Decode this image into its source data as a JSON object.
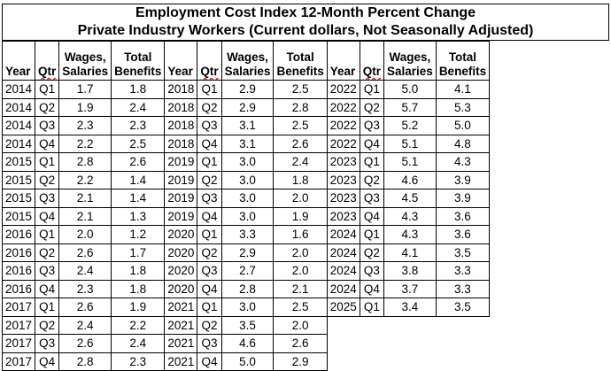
{
  "title": {
    "line1": "Employment Cost Index 12-Month Percent Change",
    "line2": "Private Industry Workers (Current dollars, Not Seasonally Adjusted)"
  },
  "headers": {
    "year": "Year",
    "qtr": "Qtr",
    "wages_l1": "Wages,",
    "wages_l2": "Salaries",
    "benefits_l1": "Total",
    "benefits_l2": "Benefits"
  },
  "groups": [
    {
      "rows": [
        {
          "year": "2014",
          "qtr": "Q1",
          "wages": "1.7",
          "benefits": "1.8"
        },
        {
          "year": "2014",
          "qtr": "Q2",
          "wages": "1.9",
          "benefits": "2.4"
        },
        {
          "year": "2014",
          "qtr": "Q3",
          "wages": "2.3",
          "benefits": "2.3"
        },
        {
          "year": "2014",
          "qtr": "Q4",
          "wages": "2.2",
          "benefits": "2.5"
        },
        {
          "year": "2015",
          "qtr": "Q1",
          "wages": "2.8",
          "benefits": "2.6"
        },
        {
          "year": "2015",
          "qtr": "Q2",
          "wages": "2.2",
          "benefits": "1.4"
        },
        {
          "year": "2015",
          "qtr": "Q3",
          "wages": "2.1",
          "benefits": "1.4"
        },
        {
          "year": "2015",
          "qtr": "Q4",
          "wages": "2.1",
          "benefits": "1.3"
        },
        {
          "year": "2016",
          "qtr": "Q1",
          "wages": "2.0",
          "benefits": "1.2"
        },
        {
          "year": "2016",
          "qtr": "Q2",
          "wages": "2.6",
          "benefits": "1.7"
        },
        {
          "year": "2016",
          "qtr": "Q3",
          "wages": "2.4",
          "benefits": "1.8"
        },
        {
          "year": "2016",
          "qtr": "Q4",
          "wages": "2.3",
          "benefits": "1.8"
        },
        {
          "year": "2017",
          "qtr": "Q1",
          "wages": "2.6",
          "benefits": "1.9"
        },
        {
          "year": "2017",
          "qtr": "Q2",
          "wages": "2.4",
          "benefits": "2.2"
        },
        {
          "year": "2017",
          "qtr": "Q3",
          "wages": "2.6",
          "benefits": "2.4"
        },
        {
          "year": "2017",
          "qtr": "Q4",
          "wages": "2.8",
          "benefits": "2.3"
        }
      ]
    },
    {
      "rows": [
        {
          "year": "2018",
          "qtr": "Q1",
          "wages": "2.9",
          "benefits": "2.5"
        },
        {
          "year": "2018",
          "qtr": "Q2",
          "wages": "2.9",
          "benefits": "2.8"
        },
        {
          "year": "2018",
          "qtr": "Q3",
          "wages": "3.1",
          "benefits": "2.5"
        },
        {
          "year": "2018",
          "qtr": "Q4",
          "wages": "3.1",
          "benefits": "2.6"
        },
        {
          "year": "2019",
          "qtr": "Q1",
          "wages": "3.0",
          "benefits": "2.4"
        },
        {
          "year": "2019",
          "qtr": "Q2",
          "wages": "3.0",
          "benefits": "1.8"
        },
        {
          "year": "2019",
          "qtr": "Q3",
          "wages": "3.0",
          "benefits": "2.0"
        },
        {
          "year": "2019",
          "qtr": "Q4",
          "wages": "3.0",
          "benefits": "1.9"
        },
        {
          "year": "2020",
          "qtr": "Q1",
          "wages": "3.3",
          "benefits": "1.6"
        },
        {
          "year": "2020",
          "qtr": "Q2",
          "wages": "2.9",
          "benefits": "2.0"
        },
        {
          "year": "2020",
          "qtr": "Q3",
          "wages": "2.7",
          "benefits": "2.0"
        },
        {
          "year": "2020",
          "qtr": "Q4",
          "wages": "2.8",
          "benefits": "2.1"
        },
        {
          "year": "2021",
          "qtr": "Q1",
          "wages": "3.0",
          "benefits": "2.5"
        },
        {
          "year": "2021",
          "qtr": "Q2",
          "wages": "3.5",
          "benefits": "2.0"
        },
        {
          "year": "2021",
          "qtr": "Q3",
          "wages": "4.6",
          "benefits": "2.6"
        },
        {
          "year": "2021",
          "qtr": "Q4",
          "wages": "5.0",
          "benefits": "2.9"
        }
      ]
    },
    {
      "rows": [
        {
          "year": "2022",
          "qtr": "Q1",
          "wages": "5.0",
          "benefits": "4.1"
        },
        {
          "year": "2022",
          "qtr": "Q2",
          "wages": "5.7",
          "benefits": "5.3"
        },
        {
          "year": "2022",
          "qtr": "Q3",
          "wages": "5.2",
          "benefits": "5.0"
        },
        {
          "year": "2022",
          "qtr": "Q4",
          "wages": "5.1",
          "benefits": "4.8"
        },
        {
          "year": "2023",
          "qtr": "Q1",
          "wages": "5.1",
          "benefits": "4.3"
        },
        {
          "year": "2023",
          "qtr": "Q2",
          "wages": "4.6",
          "benefits": "3.9"
        },
        {
          "year": "2023",
          "qtr": "Q3",
          "wages": "4.5",
          "benefits": "3.9"
        },
        {
          "year": "2023",
          "qtr": "Q4",
          "wages": "4.3",
          "benefits": "3.6"
        },
        {
          "year": "2024",
          "qtr": "Q1",
          "wages": "4.3",
          "benefits": "3.6"
        },
        {
          "year": "2024",
          "qtr": "Q2",
          "wages": "4.1",
          "benefits": "3.5"
        },
        {
          "year": "2024",
          "qtr": "Q3",
          "wages": "3.8",
          "benefits": "3.3"
        },
        {
          "year": "2024",
          "qtr": "Q4",
          "wages": "3.7",
          "benefits": "3.3"
        },
        {
          "year": "2025",
          "qtr": "Q1",
          "wages": "3.4",
          "benefits": "3.5"
        }
      ]
    }
  ],
  "colors": {
    "grid": "#000000",
    "spellcheck": "#dd2222"
  }
}
